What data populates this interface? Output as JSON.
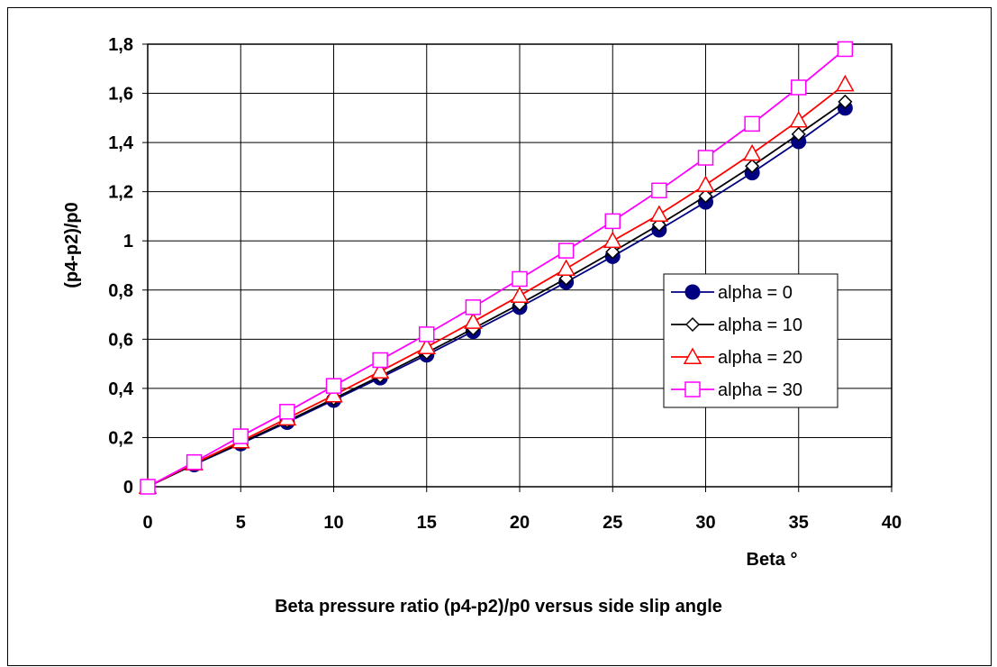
{
  "chart_data": {
    "type": "line",
    "title": "Beta pressure ratio (p4-p2)/p0 versus side slip angle",
    "xlabel": "Beta °",
    "ylabel": "(p4-p2)/p0",
    "xlim": [
      0,
      40
    ],
    "ylim": [
      0,
      1.8
    ],
    "x_ticks": [
      "0",
      "5",
      "10",
      "15",
      "20",
      "25",
      "30",
      "35",
      "40"
    ],
    "y_ticks": [
      "0",
      "0,2",
      "0,4",
      "0,6",
      "0,8",
      "1",
      "1,2",
      "1,4",
      "1,6",
      "1,8"
    ],
    "grid": true,
    "legend_position": "right",
    "x": [
      0,
      2.5,
      5,
      7.5,
      10,
      12.5,
      15,
      17.5,
      20,
      22.5,
      25,
      27.5,
      30,
      32.5,
      35,
      37.5
    ],
    "series": [
      {
        "name": "alpha = 0",
        "color": "#000080",
        "marker": "circle",
        "values": [
          0,
          0.09,
          0.175,
          0.262,
          0.352,
          0.443,
          0.536,
          0.632,
          0.73,
          0.832,
          0.937,
          1.045,
          1.158,
          1.277,
          1.404,
          1.54
        ]
      },
      {
        "name": "alpha = 10",
        "color": "#000000",
        "marker": "diamond",
        "values": [
          0,
          0.092,
          0.178,
          0.267,
          0.358,
          0.45,
          0.545,
          0.643,
          0.743,
          0.847,
          0.955,
          1.066,
          1.182,
          1.304,
          1.434,
          1.566
        ]
      },
      {
        "name": "alpha = 20",
        "color": "#ff0000",
        "marker": "triangle",
        "values": [
          0,
          0.095,
          0.185,
          0.278,
          0.372,
          0.469,
          0.568,
          0.671,
          0.777,
          0.887,
          1.0,
          1.107,
          1.228,
          1.355,
          1.49,
          1.637
        ]
      },
      {
        "name": "alpha = 30",
        "color": "#ff00ff",
        "marker": "square",
        "values": [
          0,
          0.1,
          0.205,
          0.305,
          0.41,
          0.515,
          0.62,
          0.73,
          0.845,
          0.96,
          1.08,
          1.205,
          1.338,
          1.476,
          1.624,
          1.78
        ]
      }
    ]
  }
}
